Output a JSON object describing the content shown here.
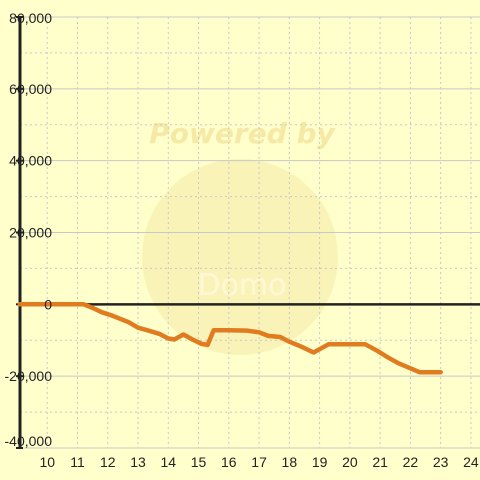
{
  "chart_data": {
    "type": "line",
    "title": "",
    "xlabel": "",
    "ylabel": "",
    "xlim": [
      9.1,
      24.3
    ],
    "ylim": [
      -40000,
      80000
    ],
    "x_ticks": [
      10,
      11,
      12,
      13,
      14,
      15,
      16,
      17,
      18,
      19,
      20,
      21,
      22,
      23,
      24
    ],
    "x_tick_labels": [
      "10",
      "11",
      "12",
      "13",
      "14",
      "15",
      "16",
      "17",
      "18",
      "19",
      "20",
      "21",
      "22",
      "23",
      "24"
    ],
    "y_ticks": [
      -40000,
      -20000,
      0,
      20000,
      40000,
      60000,
      80000
    ],
    "y_tick_labels": [
      "-40,000",
      "-20,000",
      "0",
      "20,000",
      "40,000",
      "60,000",
      "80,000"
    ],
    "grid": true,
    "legend": "none",
    "series": [
      {
        "color": "#e07b20",
        "points": [
          [
            9.1,
            0
          ],
          [
            11.2,
            0
          ],
          [
            11.5,
            -1000
          ],
          [
            11.8,
            -2200
          ],
          [
            12.1,
            -3000
          ],
          [
            12.4,
            -4000
          ],
          [
            12.7,
            -5000
          ],
          [
            13.0,
            -6500
          ],
          [
            13.3,
            -7200
          ],
          [
            13.7,
            -8200
          ],
          [
            14.0,
            -9500
          ],
          [
            14.2,
            -9800
          ],
          [
            14.5,
            -8400
          ],
          [
            14.8,
            -9800
          ],
          [
            15.1,
            -11000
          ],
          [
            15.3,
            -11300
          ],
          [
            15.5,
            -7200
          ],
          [
            16.0,
            -7200
          ],
          [
            16.6,
            -7300
          ],
          [
            17.0,
            -7800
          ],
          [
            17.3,
            -8800
          ],
          [
            17.7,
            -9100
          ],
          [
            18.0,
            -10400
          ],
          [
            18.4,
            -11800
          ],
          [
            18.8,
            -13400
          ],
          [
            19.0,
            -12500
          ],
          [
            19.3,
            -11100
          ],
          [
            19.7,
            -11100
          ],
          [
            20.2,
            -11100
          ],
          [
            20.5,
            -11100
          ],
          [
            20.9,
            -12900
          ],
          [
            21.2,
            -14500
          ],
          [
            21.6,
            -16400
          ],
          [
            22.0,
            -17800
          ],
          [
            22.3,
            -18900
          ],
          [
            22.7,
            -18900
          ],
          [
            23.0,
            -18900
          ]
        ]
      }
    ],
    "watermark": {
      "text_top": "Powered by",
      "text_bottom": "Domo"
    }
  },
  "colors": {
    "background": "#ffffcc",
    "grid": "#c8c8c8",
    "axis": "#222222",
    "series": "#e07b20"
  }
}
